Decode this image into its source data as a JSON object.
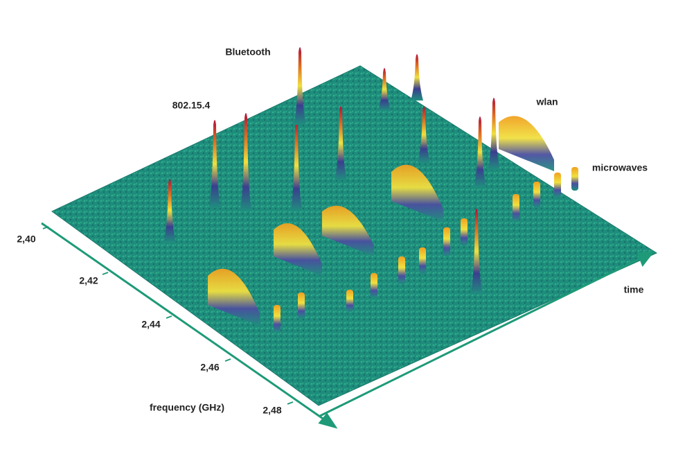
{
  "labels": {
    "bluetooth": "Bluetooth",
    "zigbee": "802.15.4",
    "wlan": "wlan",
    "microwaves": "microwaves"
  },
  "axes": {
    "time": "time",
    "frequency": {
      "title": "frequency (GHz)",
      "ticks": [
        "2,40",
        "2,42",
        "2,44",
        "2,46",
        "2,48"
      ]
    }
  }
}
